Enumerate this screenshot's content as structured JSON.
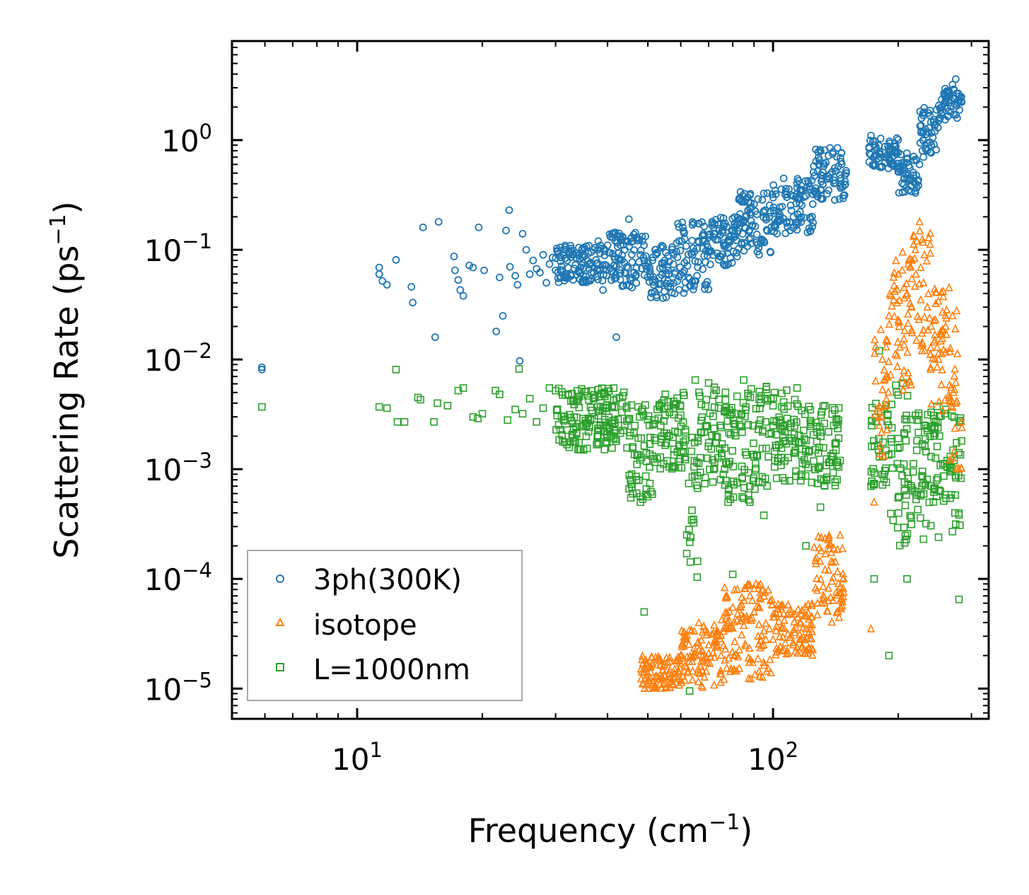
{
  "chart_data": {
    "type": "scatter",
    "title": "",
    "xlabel": {
      "main": "Frequency (cm",
      "sup": "−1",
      "end": ")"
    },
    "ylabel": {
      "main": "Scattering Rate (ps",
      "sup": "−1",
      "end": ")"
    },
    "xscale": "log",
    "yscale": "log",
    "xlim": [
      5,
      330
    ],
    "ylim": [
      5.3e-06,
      8.0
    ],
    "x_ticks": [
      {
        "value": 10,
        "base": "10",
        "exp": "1"
      },
      {
        "value": 100,
        "base": "10",
        "exp": "2"
      }
    ],
    "y_ticks": [
      {
        "value": 1.0,
        "base": "10",
        "exp": "0"
      },
      {
        "value": 0.1,
        "base": "10",
        "exp": "−1"
      },
      {
        "value": 0.01,
        "base": "10",
        "exp": "−2"
      },
      {
        "value": 0.001,
        "base": "10",
        "exp": "−3"
      },
      {
        "value": 0.0001,
        "base": "10",
        "exp": "−4"
      },
      {
        "value": 1e-05,
        "base": "10",
        "exp": "−5"
      }
    ],
    "legend_position": "bottom-left",
    "series": [
      {
        "name": "3ph(300K)",
        "marker": "circle",
        "color": "#1f77b4",
        "x": [
          5.9,
          5.9,
          11.3,
          11.3,
          11.5,
          11.8,
          12.4,
          13.5,
          13.6,
          14.4,
          15.4,
          15.7,
          17.1,
          17.2,
          17.5,
          17.7,
          18.0,
          18.6,
          19.0,
          19.6,
          20.2,
          21.6,
          22.0,
          22.4,
          22.8,
          23.2,
          23.3,
          24.0,
          24.3,
          24.6,
          25.0,
          25.5,
          26.0,
          26.5,
          27.0,
          27.5,
          28.0,
          28.5,
          29.0,
          29.5,
          30.0,
          31.0,
          32.0,
          33.0,
          34.0,
          35.0,
          36.0,
          37.0,
          38.0,
          39.0,
          40.0,
          41.0,
          42.0,
          43.0,
          44.0,
          45.0,
          46.0,
          47.0,
          48.0,
          49.0,
          50.0,
          52.0,
          54.0,
          56.0,
          58.0,
          60.0,
          62.0,
          64.0,
          66.0,
          68.0,
          70.0,
          72.0,
          74.0,
          76.0,
          78.0,
          80.0,
          82.0,
          84.0,
          86.0,
          88.0,
          90.0,
          92.0,
          95.0,
          98.0,
          101.0,
          104.0,
          108.0,
          112.0,
          116.0,
          120.0,
          124.0,
          128.0,
          132.0,
          136.0,
          140.0,
          145.0,
          150.0,
          172.0,
          175.0,
          180.0,
          185.0,
          190.0,
          195.0,
          200.0,
          205.0,
          210.0,
          215.0,
          220.0,
          225.0,
          230.0,
          235.0,
          240.0,
          245.0,
          250.0,
          255.0,
          260.0,
          265.0,
          270.0,
          275.0,
          280.0
        ],
        "y": [
          0.0085,
          0.0081,
          0.069,
          0.06,
          0.052,
          0.048,
          0.081,
          0.046,
          0.033,
          0.16,
          0.016,
          0.18,
          0.087,
          0.065,
          0.053,
          0.043,
          0.038,
          0.072,
          0.069,
          0.16,
          0.065,
          0.018,
          0.056,
          0.025,
          0.15,
          0.23,
          0.07,
          0.058,
          0.048,
          0.0097,
          0.14,
          0.1,
          0.06,
          0.08,
          0.067,
          0.062,
          0.09,
          0.05,
          0.074,
          0.085,
          0.065,
          0.071,
          0.08,
          0.09,
          0.063,
          0.058,
          0.052,
          0.1,
          0.12,
          0.043,
          0.11,
          0.14,
          0.016,
          0.11,
          0.1,
          0.19,
          0.12,
          0.13,
          0.09,
          0.08,
          0.07,
          0.053,
          0.059,
          0.065,
          0.04,
          0.06,
          0.08,
          0.09,
          0.12,
          0.14,
          0.13,
          0.16,
          0.17,
          0.17,
          0.12,
          0.15,
          0.17,
          0.19,
          0.2,
          0.24,
          0.26,
          0.29,
          0.22,
          0.2,
          0.19,
          0.19,
          0.18,
          0.2,
          0.29,
          0.31,
          0.43,
          0.52,
          0.61,
          0.72,
          0.43,
          0.38,
          0.5,
          1.1,
          0.9,
          0.75,
          0.7,
          0.8,
          0.6,
          0.55,
          0.5,
          0.45,
          0.38,
          0.33,
          0.6,
          0.7,
          0.8,
          0.9,
          1.2,
          1.5,
          2.0,
          2.4,
          2.8,
          3.2,
          3.6,
          2.5
        ],
        "dense_ranges": [
          [
            30,
            40,
            0.05,
            0.11
          ],
          [
            40,
            50,
            0.045,
            0.15
          ],
          [
            50,
            58,
            0.035,
            0.11
          ],
          [
            58,
            70,
            0.04,
            0.18
          ],
          [
            70,
            82,
            0.07,
            0.2
          ],
          [
            82,
            100,
            0.09,
            0.35
          ],
          [
            100,
            125,
            0.14,
            0.45
          ],
          [
            125,
            150,
            0.28,
            0.85
          ],
          [
            170,
            200,
            0.55,
            1.05
          ],
          [
            200,
            225,
            0.33,
            0.8
          ],
          [
            225,
            250,
            0.75,
            2.0
          ],
          [
            250,
            285,
            1.5,
            3.0
          ]
        ]
      },
      {
        "name": "isotope",
        "marker": "triangle",
        "color": "#ff7f0e",
        "x": [
          48.5,
          50,
          52,
          55,
          58,
          60,
          62,
          64,
          66,
          68,
          70,
          72,
          75,
          78,
          80,
          82,
          85,
          88,
          90,
          92,
          95,
          98,
          100,
          104,
          108,
          112,
          116,
          120,
          124,
          128,
          132,
          136,
          140,
          145,
          172,
          175,
          180,
          185,
          190,
          195,
          200,
          205,
          210,
          215,
          220,
          225,
          230,
          235,
          240,
          245,
          250,
          255,
          260,
          265,
          270,
          275,
          280
        ],
        "y": [
          1.1e-05,
          1e-05,
          1.05e-05,
          1.3e-05,
          1.5e-05,
          2e-05,
          2.8e-05,
          1.2e-05,
          1.5e-05,
          1.8e-05,
          2.5e-05,
          3.2e-05,
          2e-05,
          3.5e-05,
          5.5e-05,
          8e-05,
          4.5e-05,
          7e-05,
          5e-05,
          3e-05,
          2.5e-05,
          3.5e-05,
          2.8e-05,
          2.4e-05,
          2.2e-05,
          2.5e-05,
          2.8e-05,
          3.5e-05,
          4.5e-05,
          6e-05,
          8.5e-05,
          0.00012,
          0.00019,
          0.00025,
          3.5e-05,
          0.0005,
          0.0025,
          0.008,
          0.025,
          0.035,
          0.06,
          0.095,
          0.04,
          0.03,
          0.1,
          0.18,
          0.05,
          0.03,
          0.02,
          0.015,
          0.01,
          0.008,
          0.02,
          0.045,
          0.025,
          0.004,
          0.001
        ],
        "dense_ranges": [
          [
            48,
            60,
            1e-05,
            2e-05
          ],
          [
            60,
            75,
            1e-05,
            4e-05
          ],
          [
            75,
            100,
            1.2e-05,
            9e-05
          ],
          [
            100,
            125,
            2e-05,
            6e-05
          ],
          [
            125,
            148,
            4e-05,
            0.00025
          ],
          [
            175,
            190,
            0.001,
            0.02
          ],
          [
            190,
            215,
            0.005,
            0.09
          ],
          [
            215,
            240,
            0.008,
            0.17
          ],
          [
            240,
            265,
            0.003,
            0.045
          ],
          [
            265,
            285,
            0.001,
            0.03
          ]
        ]
      },
      {
        "name": "L=1000nm",
        "marker": "square",
        "color": "#2ca02c",
        "x": [
          5.9,
          11.3,
          11.8,
          12.4,
          12.5,
          13.0,
          14.0,
          14.2,
          15.3,
          15.6,
          16.5,
          17.5,
          18.0,
          19.0,
          19.5,
          20.0,
          21.5,
          22.0,
          23.0,
          24.0,
          24.5,
          25.0,
          26.0,
          27.0,
          28.0,
          29.0,
          30.0,
          31.0,
          33.0,
          35.0,
          36.0,
          38.0,
          40.0,
          42.0,
          44.0,
          46.0,
          47.0,
          48.0,
          49.0,
          52.0,
          55.0,
          60.0,
          62.0,
          63.0,
          65.0,
          70.0,
          75.0,
          78.0,
          80.0,
          85.0,
          90.0,
          95.0,
          100.0,
          110.0,
          120.0,
          130.0,
          140.0,
          145.0,
          172.0,
          175.0,
          180.0,
          185.0,
          190.0,
          200.0,
          210.0,
          220.0,
          230.0,
          240.0,
          250.0,
          260.0,
          270.0,
          280.0
        ],
        "y": [
          0.0037,
          0.0037,
          0.0036,
          0.0081,
          0.0027,
          0.0027,
          0.0045,
          0.0043,
          0.0027,
          0.004,
          0.0038,
          0.0052,
          0.0055,
          0.003,
          0.0029,
          0.0032,
          0.0052,
          0.0048,
          0.0028,
          0.0035,
          0.0082,
          0.0032,
          0.0044,
          0.0027,
          0.0036,
          0.0055,
          0.0052,
          0.003,
          0.0026,
          0.0015,
          0.0022,
          0.0034,
          0.0022,
          0.0018,
          0.0025,
          0.0016,
          0.0008,
          0.0005,
          5e-05,
          0.0028,
          0.0031,
          0.0031,
          0.00017,
          9.5e-06,
          0.0065,
          0.0061,
          0.0024,
          0.0005,
          0.00011,
          0.0065,
          0.0013,
          0.00038,
          0.0025,
          0.0024,
          0.0002,
          0.00045,
          0.0025,
          0.0012,
          0.0007,
          0.0001,
          0.012,
          0.0009,
          2e-05,
          0.0019,
          0.0001,
          0.0031,
          0.00023,
          0.0033,
          0.00024,
          0.0035,
          0.00027,
          6.5e-05
        ],
        "dense_ranges": [
          [
            30,
            45,
            0.0015,
            0.0055
          ],
          [
            45,
            52,
            0.0005,
            0.004
          ],
          [
            52,
            62,
            0.001,
            0.005
          ],
          [
            62,
            66,
            0.0001,
            0.002
          ],
          [
            66,
            78,
            0.0007,
            0.006
          ],
          [
            78,
            92,
            0.0005,
            0.006
          ],
          [
            92,
            115,
            0.0007,
            0.006
          ],
          [
            115,
            145,
            0.0007,
            0.004
          ],
          [
            172,
            190,
            0.0007,
            0.004
          ],
          [
            190,
            215,
            0.0002,
            0.007
          ],
          [
            215,
            240,
            0.0003,
            0.004
          ],
          [
            240,
            270,
            0.0005,
            0.004
          ],
          [
            270,
            285,
            0.0003,
            0.003
          ]
        ]
      }
    ]
  }
}
